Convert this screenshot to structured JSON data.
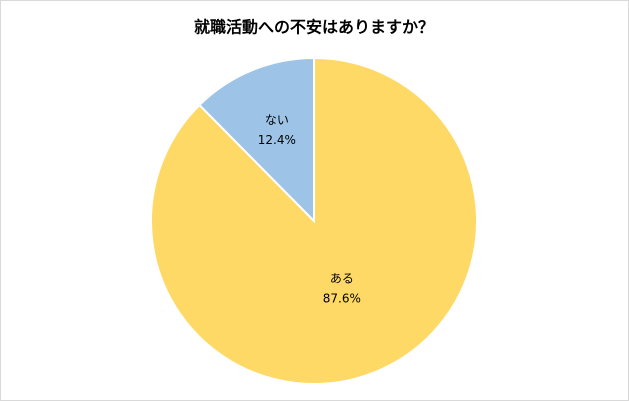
{
  "chart_data": {
    "type": "pie",
    "title": "就職活動への不安はありますか？",
    "categories": [
      "ある",
      "ない"
    ],
    "values": [
      87.6,
      12.4
    ],
    "value_labels": [
      "87.6%",
      "12.4%"
    ],
    "colors": [
      "#ffd966",
      "#9dc3e6"
    ]
  }
}
